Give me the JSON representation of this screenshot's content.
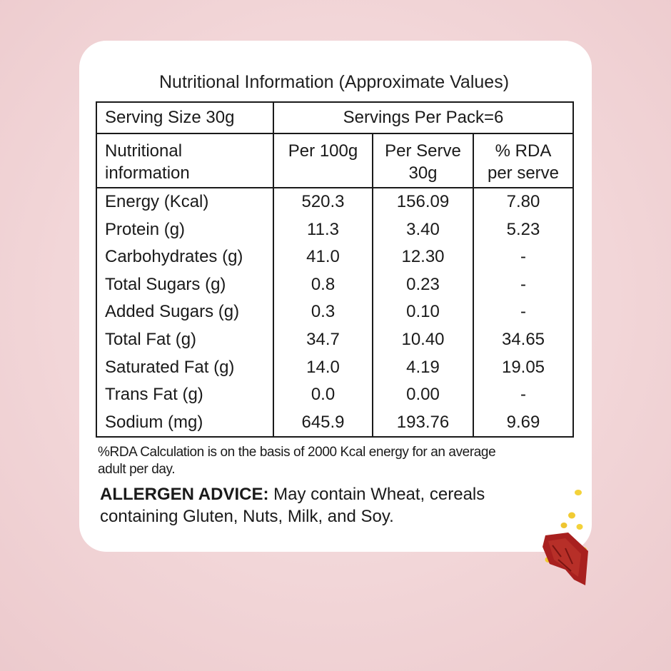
{
  "title": "Nutritional Information (Approximate Values)",
  "serving": {
    "size_label": "Serving Size 30g",
    "per_pack_label": "Servings Per Pack=6"
  },
  "headers": {
    "nutrient": [
      "Nutritional",
      "information"
    ],
    "per100": "Per 100g",
    "per_serve": [
      "Per Serve",
      "30g"
    ],
    "rda": [
      "% RDA",
      "per serve"
    ]
  },
  "rows": [
    {
      "name": "Energy (Kcal)",
      "per100": "520.3",
      "per_serve": "156.09",
      "rda": "7.80"
    },
    {
      "name": "Protein (g)",
      "per100": "11.3",
      "per_serve": "3.40",
      "rda": "5.23"
    },
    {
      "name": "Carbohydrates (g)",
      "per100": "41.0",
      "per_serve": "12.30",
      "rda": "-"
    },
    {
      "name": "Total Sugars (g)",
      "per100": "0.8",
      "per_serve": "0.23",
      "rda": "-"
    },
    {
      "name": "Added Sugars (g)",
      "per100": "0.3",
      "per_serve": "0.10",
      "rda": "-"
    },
    {
      "name": "Total Fat (g)",
      "per100": "34.7",
      "per_serve": "10.40",
      "rda": "34.65"
    },
    {
      "name": "Saturated Fat (g)",
      "per100": "14.0",
      "per_serve": "4.19",
      "rda": "19.05"
    },
    {
      "name": "Trans Fat (g)",
      "per100": "0.0",
      "per_serve": "0.00",
      "rda": "-"
    },
    {
      "name": "Sodium (mg)",
      "per100": "645.9",
      "per_serve": "193.76",
      "rda": "9.69"
    }
  ],
  "footnote": [
    "%RDA Calculation is on the basis of 2000 Kcal energy for an average",
    "adult per day."
  ],
  "allergen": {
    "label": "ALLERGEN ADVICE:",
    "text_line1": " May contain Wheat, cereals",
    "text_line2": "containing Gluten, Nuts, Milk, and Soy."
  },
  "colors": {
    "background": "#f2d6d8",
    "card": "#ffffff",
    "text": "#1a1a1a",
    "snack": "#a8201f",
    "kernel": "#f3d23a"
  }
}
